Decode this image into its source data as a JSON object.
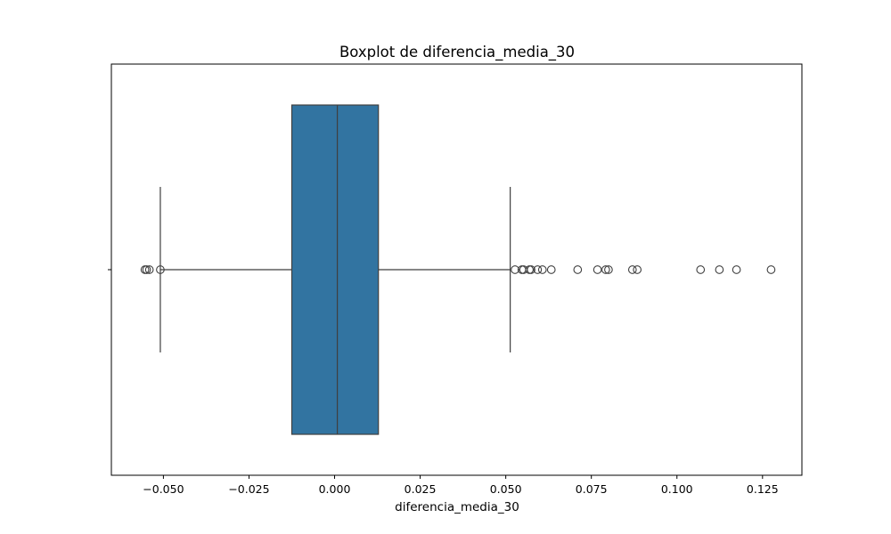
{
  "chart_data": {
    "type": "boxplot",
    "orientation": "horizontal",
    "title": "Boxplot de diferencia_media_30",
    "xlabel": "diferencia_media_30",
    "ylabel": "",
    "xlim": [
      -0.0652,
      0.1365
    ],
    "xticks": [
      -0.05,
      -0.025,
      0.0,
      0.025,
      0.05,
      0.075,
      0.1,
      0.125
    ],
    "xtick_labels": [
      "−0.050",
      "−0.025",
      "0.000",
      "0.025",
      "0.050",
      "0.075",
      "0.100",
      "0.125"
    ],
    "grid": false,
    "box": {
      "whisker_low": -0.0509,
      "q1": -0.0125,
      "median": 0.0008,
      "q3": 0.0128,
      "whisker_high": 0.0513
    },
    "outliers": [
      -0.0554,
      -0.0549,
      -0.0541,
      -0.0509,
      0.0527,
      0.0547,
      0.0552,
      0.0569,
      0.0574,
      0.0593,
      0.0607,
      0.0633,
      0.071,
      0.0768,
      0.0792,
      0.08,
      0.087,
      0.0884,
      0.1069,
      0.1124,
      0.1174,
      0.1275
    ],
    "colors": {
      "box_fill": "#3274a1",
      "line": "#3f3f3f",
      "frame": "#000000"
    }
  }
}
